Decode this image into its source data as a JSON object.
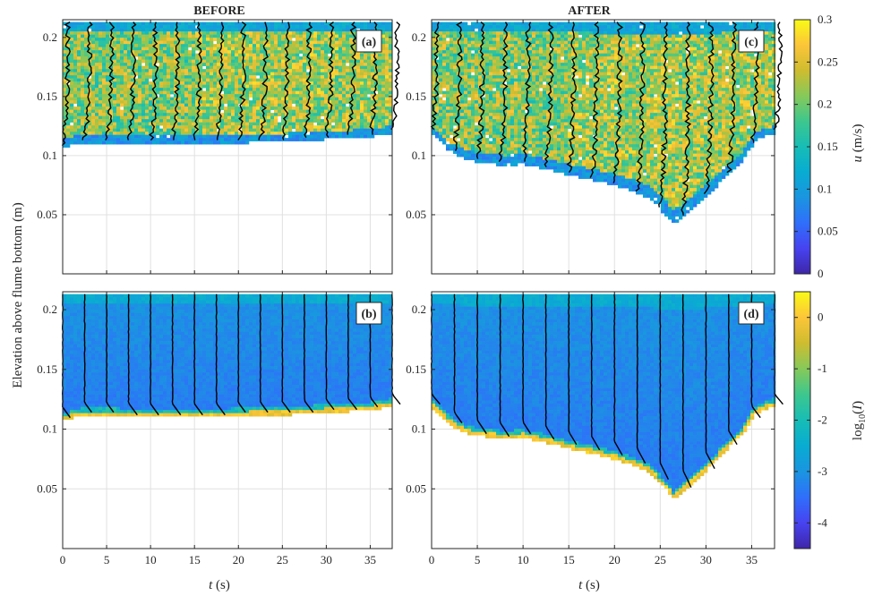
{
  "figure": {
    "column_titles": [
      "BEFORE",
      "AFTER"
    ],
    "ylabel": "Elevation above flume bottom (m)",
    "xlabel_italic": "t",
    "xlabel_unit": " (s)"
  },
  "colorbars": [
    {
      "label_italic": "u",
      "label_rest": " (m/s)",
      "ticks": [
        "0",
        "0.05",
        "0.1",
        "0.15",
        "0.2",
        "0.25",
        "0.3"
      ],
      "range": [
        0,
        0.3
      ]
    },
    {
      "label_prefix": "log",
      "label_sub": "10",
      "label_open": "(",
      "label_italic": "I",
      "label_close": ")",
      "ticks": [
        "-4",
        "-3",
        "-2",
        "-1",
        "0"
      ],
      "range": [
        -4.5,
        0.5
      ]
    }
  ],
  "colors": {
    "colormap": [
      "#3e26a8",
      "#4743f1",
      "#2f6ffb",
      "#1a95e0",
      "#08acd2",
      "#17bdb5",
      "#3dc78e",
      "#86c95a",
      "#cfbc2f",
      "#fcc539",
      "#f9fb15"
    ],
    "profile_line": "#000000",
    "grid": "#e0e0e0"
  },
  "chart_data": [
    {
      "panel": "(a)",
      "type": "heatmap",
      "quantity": "u (m/s)",
      "condition": "BEFORE",
      "xlim": [
        0,
        37.5
      ],
      "ylim": [
        0,
        0.215
      ],
      "xticks": [
        0,
        5,
        10,
        15,
        20,
        25,
        30,
        35
      ],
      "yticks": [
        0.05,
        0.1,
        0.15,
        0.2
      ],
      "top_elevation": 0.213,
      "bed_profile": {
        "t": [
          0,
          1,
          2,
          4,
          6,
          10,
          15,
          20,
          25,
          30,
          35,
          37.5
        ],
        "z": [
          0.108,
          0.11,
          0.112,
          0.112,
          0.112,
          0.111,
          0.111,
          0.112,
          0.113,
          0.115,
          0.117,
          0.12
        ]
      },
      "profile_times": [
        0,
        2.5,
        5,
        7.5,
        10,
        12.5,
        15,
        17.5,
        20,
        22.5,
        25,
        27.5,
        30,
        32.5,
        35,
        37.5
      ]
    },
    {
      "panel": "(b)",
      "type": "heatmap",
      "quantity": "log10(I)",
      "condition": "BEFORE",
      "xlim": [
        0,
        37.5
      ],
      "ylim": [
        0,
        0.215
      ],
      "xticks": [
        0,
        5,
        10,
        15,
        20,
        25,
        30,
        35
      ],
      "yticks": [
        0.05,
        0.1,
        0.15,
        0.2
      ],
      "top_elevation": 0.213,
      "bed_profile": {
        "t": [
          0,
          1,
          2,
          4,
          6,
          10,
          15,
          20,
          25,
          30,
          35,
          37.5
        ],
        "z": [
          0.108,
          0.11,
          0.112,
          0.112,
          0.112,
          0.111,
          0.111,
          0.112,
          0.113,
          0.115,
          0.117,
          0.12
        ]
      },
      "profile_times": [
        0,
        2.5,
        5,
        7.5,
        10,
        12.5,
        15,
        17.5,
        20,
        22.5,
        25,
        27.5,
        30,
        32.5,
        35,
        37.5
      ]
    },
    {
      "panel": "(c)",
      "type": "heatmap",
      "quantity": "u (m/s)",
      "condition": "AFTER",
      "xlim": [
        0,
        37.5
      ],
      "ylim": [
        0,
        0.215
      ],
      "xticks": [
        0,
        5,
        10,
        15,
        20,
        25,
        30,
        35
      ],
      "yticks": [
        0.05,
        0.1,
        0.15,
        0.2
      ],
      "top_elevation": 0.213,
      "bed_profile": {
        "t": [
          0,
          2,
          4,
          6,
          8,
          10,
          12,
          14,
          16,
          18,
          20,
          22,
          24,
          25.5,
          26.5,
          28,
          30,
          32,
          34,
          35.5,
          37.5
        ],
        "z": [
          0.12,
          0.105,
          0.097,
          0.095,
          0.093,
          0.094,
          0.091,
          0.087,
          0.083,
          0.08,
          0.076,
          0.071,
          0.064,
          0.052,
          0.043,
          0.052,
          0.066,
          0.082,
          0.097,
          0.115,
          0.12
        ]
      },
      "profile_times": [
        0,
        2.5,
        5,
        7.5,
        10,
        12.5,
        15,
        17.5,
        20,
        22.5,
        25,
        27.5,
        30,
        32.5,
        35,
        37.5
      ]
    },
    {
      "panel": "(d)",
      "type": "heatmap",
      "quantity": "log10(I)",
      "condition": "AFTER",
      "xlim": [
        0,
        37.5
      ],
      "ylim": [
        0,
        0.215
      ],
      "xticks": [
        0,
        5,
        10,
        15,
        20,
        25,
        30,
        35
      ],
      "yticks": [
        0.05,
        0.1,
        0.15,
        0.2
      ],
      "top_elevation": 0.213,
      "bed_profile": {
        "t": [
          0,
          2,
          4,
          6,
          8,
          10,
          12,
          14,
          16,
          18,
          20,
          22,
          24,
          25.5,
          26.5,
          28,
          30,
          32,
          34,
          35.5,
          37.5
        ],
        "z": [
          0.12,
          0.105,
          0.097,
          0.095,
          0.093,
          0.094,
          0.091,
          0.087,
          0.083,
          0.08,
          0.076,
          0.071,
          0.064,
          0.052,
          0.043,
          0.052,
          0.066,
          0.082,
          0.097,
          0.115,
          0.12
        ]
      },
      "profile_times": [
        0,
        2.5,
        5,
        7.5,
        10,
        12.5,
        15,
        17.5,
        20,
        22.5,
        25,
        27.5,
        30,
        32.5,
        35,
        37.5
      ]
    }
  ]
}
